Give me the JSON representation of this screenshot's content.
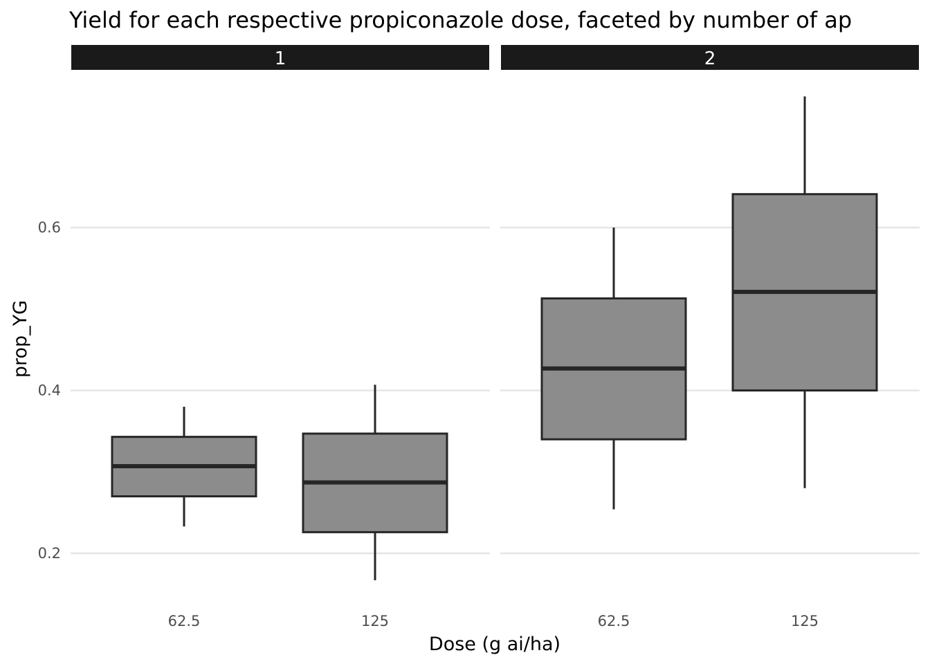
{
  "chart_data": {
    "type": "boxplot",
    "title": "Yield for each respective propiconazole dose, faceted by number of ap",
    "xlabel": "Dose (g ai/ha)",
    "ylabel": "prop_YG",
    "ylim": [
      0.16,
      0.77
    ],
    "yticks": [
      "0.2",
      "0.4",
      "0.6"
    ],
    "categories": [
      "62.5",
      "125"
    ],
    "grid": "horizontal major lines",
    "facets": [
      {
        "label": "1",
        "boxes": [
          {
            "category": "62.5",
            "whisker_low": 0.233,
            "q1": 0.27,
            "median": 0.307,
            "q3": 0.343,
            "whisker_high": 0.38
          },
          {
            "category": "125",
            "whisker_low": 0.167,
            "q1": 0.226,
            "median": 0.287,
            "q3": 0.347,
            "whisker_high": 0.407
          }
        ]
      },
      {
        "label": "2",
        "boxes": [
          {
            "category": "62.5",
            "whisker_low": 0.254,
            "q1": 0.34,
            "median": 0.427,
            "q3": 0.513,
            "whisker_high": 0.6
          },
          {
            "category": "125",
            "whisker_low": 0.28,
            "q1": 0.4,
            "median": 0.521,
            "q3": 0.641,
            "whisker_high": 0.761
          }
        ]
      }
    ],
    "colors": {
      "box_fill": "#8c8c8c",
      "box_stroke": "#262626",
      "strip_fill": "#1a1a1a",
      "grid": "#e5e5e5"
    }
  }
}
